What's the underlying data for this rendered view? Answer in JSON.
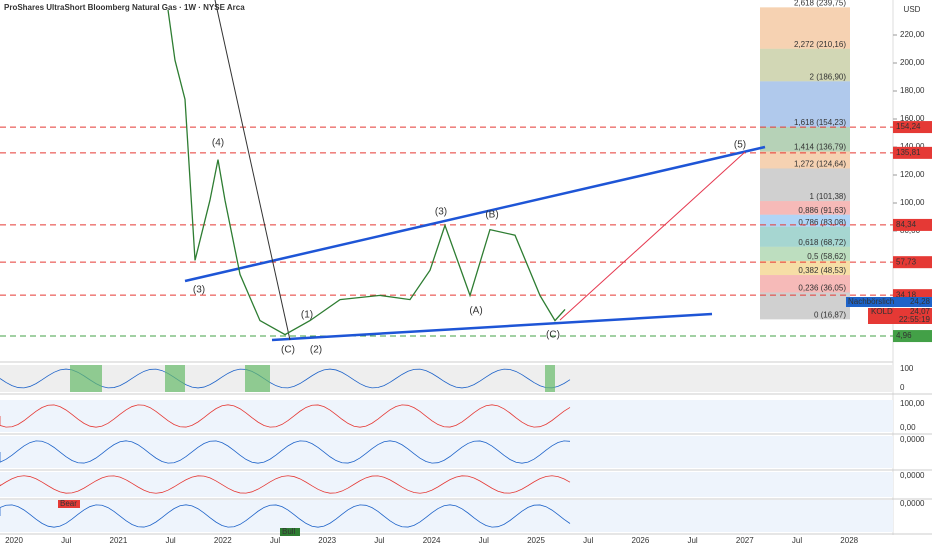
{
  "header": {
    "title": "ProShares UltraShort Bloomberg Natural Gas · 1W · NYSE Arca",
    "currency": "USD"
  },
  "price_axis": {
    "ticks": [
      {
        "value": 220,
        "label": "220,00"
      },
      {
        "value": 200,
        "label": "200,00"
      },
      {
        "value": 180,
        "label": "180,00"
      },
      {
        "value": 160,
        "label": "160,00"
      },
      {
        "value": 140,
        "label": "140,00"
      },
      {
        "value": 120,
        "label": "120,00"
      },
      {
        "value": 100,
        "label": "100,00"
      },
      {
        "value": 80,
        "label": "80,00"
      }
    ]
  },
  "price_tags": [
    {
      "value": 154.24,
      "label": "154,24",
      "color": "#e53935"
    },
    {
      "value": 135.81,
      "label": "135,81",
      "color": "#e53935"
    },
    {
      "value": 84.34,
      "label": "84,34",
      "color": "#e53935"
    },
    {
      "value": 57.73,
      "label": "57,73",
      "color": "#e53935"
    },
    {
      "value": 34.18,
      "label": "34,18",
      "color": "#e53935"
    },
    {
      "value": 4.96,
      "label": "4,96",
      "color": "#43a047"
    }
  ],
  "session": {
    "after_hours": "Nachbörslich",
    "after_value": "24,28",
    "symbol": "KOLD",
    "last": "24,07",
    "countdown": "22:55:19"
  },
  "fib_levels": [
    {
      "value": 239.75,
      "label": "2,618 (239,75)",
      "color": "#c0392b"
    },
    {
      "value": 210.16,
      "label": "2,272 (210,16)",
      "color": "#e67e22"
    },
    {
      "value": 186.9,
      "label": "2 (186,90)",
      "color": "#7d8b2a"
    },
    {
      "value": 154.23,
      "label": "1,618 (154,23)",
      "color": "#1e63c9"
    },
    {
      "value": 136.79,
      "label": "1,414 (136,79)",
      "color": "#2e7d32"
    },
    {
      "value": 124.64,
      "label": "1,272 (124,64)",
      "color": "#e67e22"
    },
    {
      "value": 101.38,
      "label": "1 (101,38)",
      "color": "#777777"
    },
    {
      "value": 91.63,
      "label": "0,886 (91,63)",
      "color": "#e53935"
    },
    {
      "value": 83.08,
      "label": "0,786 (83,08)",
      "color": "#1e88e5"
    },
    {
      "value": 68.72,
      "label": "0,618 (68,72)",
      "color": "#00897b"
    },
    {
      "value": 58.62,
      "label": "0,5 (58,62)",
      "color": "#43a047"
    },
    {
      "value": 48.53,
      "label": "0,382 (48,53)",
      "color": "#e6a100"
    },
    {
      "value": 36.05,
      "label": "0,236 (36,05)",
      "color": "#e53935"
    },
    {
      "value": 16.87,
      "label": "0 (16,87)",
      "color": "#777777"
    }
  ],
  "waves": [
    "(4)",
    "(3)",
    "(1)",
    "(2)",
    "(C)",
    "(3)",
    "(B)",
    "(A)",
    "(C)",
    "(5)"
  ],
  "price_path": {
    "t": [
      2021.475,
      2021.542,
      2021.638,
      2021.734,
      2021.877,
      2021.954,
      2022.021,
      2022.165,
      2022.356,
      2022.596,
      2022.835,
      2023.123,
      2023.506,
      2023.793,
      2023.985,
      2024.128,
      2024.368,
      2024.559,
      2024.799,
      2025.038,
      2025.182,
      2025.278
    ],
    "values": [
      238,
      202,
      174,
      59,
      102,
      131,
      102,
      49,
      16,
      6,
      16,
      31,
      34,
      31,
      52,
      84,
      34,
      81,
      77,
      34,
      16,
      24
    ]
  },
  "time_axis": [
    "2020",
    "Jul",
    "2021",
    "Jul",
    "2022",
    "Jul",
    "2023",
    "Jul",
    "2024",
    "Jul",
    "2025",
    "Jul",
    "2026",
    "Jul",
    "2027",
    "Jul",
    "2028"
  ],
  "indicators": [
    [
      "100",
      "0"
    ],
    [
      "100,00",
      "0,00"
    ],
    [
      "0,0000"
    ],
    [
      "0,0000"
    ],
    [
      "0,0000"
    ]
  ],
  "signals": [
    "Bear",
    "Bull"
  ]
}
